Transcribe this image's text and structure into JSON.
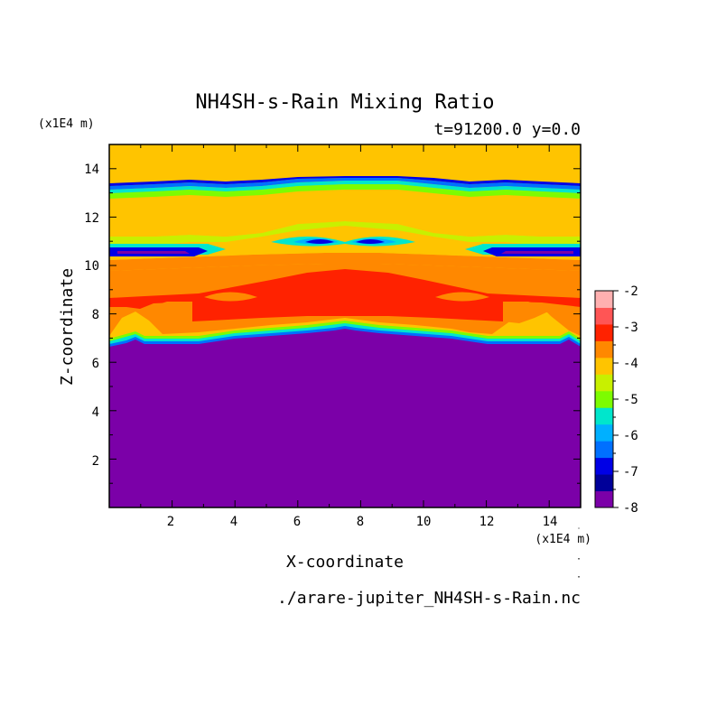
{
  "chart_data": {
    "type": "heatmap",
    "title": "NH4SH-s-Rain Mixing Ratio",
    "subtitle": "t=91200.0 y=0.0",
    "xlabel": "X-coordinate",
    "ylabel": "Z-coordinate",
    "x_unit": "(x1E4 m)",
    "y_unit": "(x1E4 m)",
    "xlim": [
      0,
      15
    ],
    "ylim": [
      0,
      15
    ],
    "x_ticks": [
      "2",
      "4",
      "6",
      "8",
      "10",
      "12",
      "14"
    ],
    "y_ticks": [
      "2",
      "4",
      "6",
      "8",
      "10",
      "12",
      "14"
    ],
    "source_file": "./arare-jupiter_NH4SH-s-Rain.nc",
    "colorbar": {
      "levels": [
        -8,
        -7.5,
        -7,
        -6.5,
        -6,
        -5.5,
        -5,
        -4.5,
        -4,
        -3.5,
        -3,
        -2.5,
        -2
      ],
      "labels": [
        "-2",
        "-3",
        "-4",
        "-5",
        "-6",
        "-7",
        "-8"
      ],
      "colors": [
        "#7b00a8",
        "#000099",
        "#0000e6",
        "#0070ff",
        "#00b0ff",
        "#00e6cc",
        "#7dfc00",
        "#c8f000",
        "#ffc400",
        "#ff8800",
        "#ff2200",
        "#ff5555",
        "#ffb0b0"
      ]
    },
    "bands": [
      {
        "z": 7.3,
        "level": "-5",
        "color": "#7dfc00"
      },
      {
        "z": 7.6,
        "level": "-4",
        "color": "#ffc400"
      },
      {
        "z": 8.0,
        "level": "-3.5",
        "color": "#ff8800"
      },
      {
        "z": 8.6,
        "level": "-3",
        "color": "#ff2200"
      },
      {
        "z": 9.8,
        "level": "-3.5",
        "color": "#ff8800"
      },
      {
        "z": 10.4,
        "level": "-4",
        "color": "#ffc400"
      },
      {
        "z": 11.3,
        "level": "-4.5",
        "color": "#c8f000"
      },
      {
        "z": 13.2,
        "level": "-6",
        "color": "#00b0ff"
      }
    ]
  }
}
